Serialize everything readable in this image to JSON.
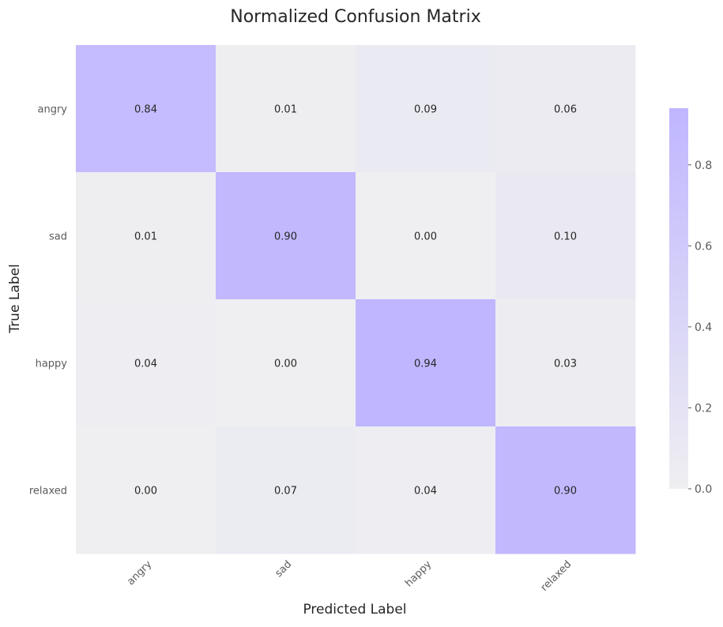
{
  "chart_data": {
    "type": "heatmap",
    "title": "Normalized Confusion Matrix",
    "xlabel": "Predicted Label",
    "ylabel": "True Label",
    "x_categories": [
      "angry",
      "sad",
      "happy",
      "relaxed"
    ],
    "y_categories": [
      "angry",
      "sad",
      "happy",
      "relaxed"
    ],
    "values": [
      [
        0.84,
        0.01,
        0.09,
        0.06
      ],
      [
        0.01,
        0.9,
        0.0,
        0.1
      ],
      [
        0.04,
        0.0,
        0.94,
        0.03
      ],
      [
        0.0,
        0.07,
        0.04,
        0.9
      ]
    ],
    "value_labels": [
      [
        "0.84",
        "0.01",
        "0.09",
        "0.06"
      ],
      [
        "0.01",
        "0.90",
        "0.00",
        "0.10"
      ],
      [
        "0.04",
        "0.00",
        "0.94",
        "0.03"
      ],
      [
        "0.00",
        "0.07",
        "0.04",
        "0.90"
      ]
    ],
    "colorbar": {
      "range": [
        0,
        0.94
      ],
      "ticks": [
        0.0,
        0.2,
        0.4,
        0.6,
        0.8
      ],
      "tick_labels": [
        "0.0",
        "0.2",
        "0.4",
        "0.6",
        "0.8"
      ],
      "color_low": "#efeff1",
      "color_high": "#bfb6ff"
    },
    "x_tick_rotation": "45-degree",
    "grid": false
  }
}
